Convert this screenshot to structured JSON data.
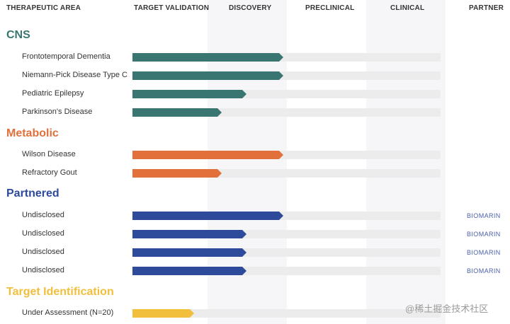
{
  "header": {
    "therapeutic_area": "THERAPEUTIC AREA",
    "target_validation": "TARGET VALIDATION",
    "discovery": "DISCOVERY",
    "preclinical": "PRECLINICAL",
    "clinical": "CLINICAL",
    "partner": "PARTNER"
  },
  "colors": {
    "cns": "#3a7671",
    "metabolic": "#e2703a",
    "partnered": "#2e4a9a",
    "target_identification": "#f2bf3c"
  },
  "sections": [
    {
      "title": "CNS",
      "color": "#3a7671",
      "rows": [
        {
          "label": "Frontotemporal Dementia",
          "progress": 0.49,
          "partner": ""
        },
        {
          "label": "Niemann-Pick Disease Type C",
          "progress": 0.49,
          "partner": ""
        },
        {
          "label": "Pediatric Epilepsy",
          "progress": 0.37,
          "partner": ""
        },
        {
          "label": "Parkinson's Disease",
          "progress": 0.29,
          "partner": ""
        }
      ]
    },
    {
      "title": "Metabolic",
      "color": "#e2703a",
      "rows": [
        {
          "label": "Wilson Disease",
          "progress": 0.49,
          "partner": ""
        },
        {
          "label": "Refractory Gout",
          "progress": 0.29,
          "partner": ""
        }
      ]
    },
    {
      "title": "Partnered",
      "color": "#2e4a9a",
      "rows": [
        {
          "label": "Undisclosed",
          "progress": 0.49,
          "partner": "BIOMARIN"
        },
        {
          "label": "Undisclosed",
          "progress": 0.37,
          "partner": "BIOMARIN"
        },
        {
          "label": "Undisclosed",
          "progress": 0.37,
          "partner": "BIOMARIN"
        },
        {
          "label": "Undisclosed",
          "progress": 0.37,
          "partner": "BIOMARIN"
        }
      ]
    },
    {
      "title": "Target Identification",
      "color": "#f2bf3c",
      "rows": [
        {
          "label": "Under Assessment (N=20)",
          "progress": 0.2,
          "partner": ""
        }
      ]
    }
  ],
  "watermark": "@稀土掘金技术社区"
}
